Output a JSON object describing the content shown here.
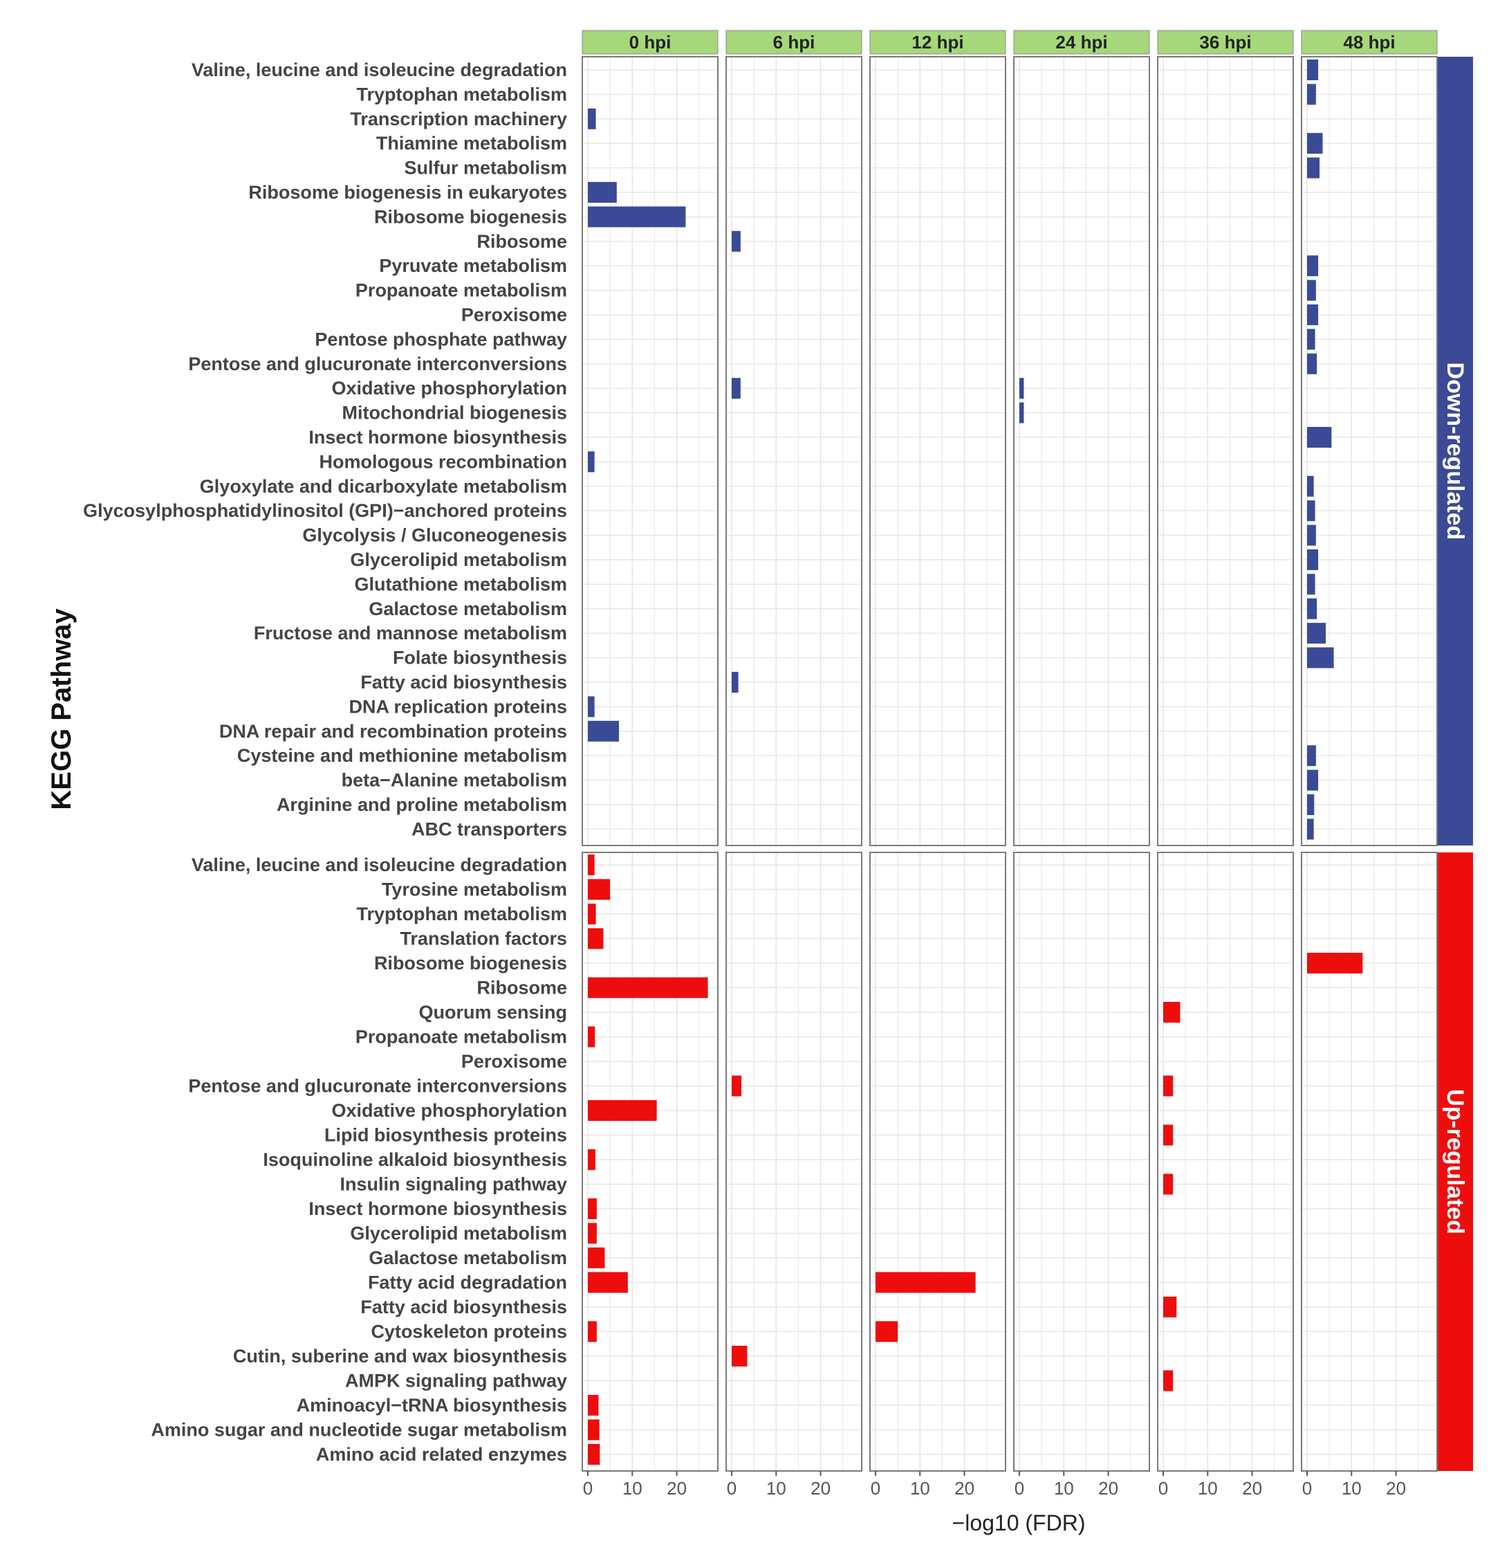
{
  "chart_data": {
    "type": "bar",
    "orientation": "horizontal",
    "ylabel": "KEGG Pathway",
    "xlabel": "−log10 (FDR)",
    "xlim": [
      0,
      28
    ],
    "x_ticks": [
      "0",
      "10",
      "20"
    ],
    "timepoints": [
      "0 hpi",
      "6 hpi",
      "12 hpi",
      "24 hpi",
      "36 hpi",
      "48 hpi"
    ],
    "colors": {
      "down": "#3a4a96",
      "up": "#ee0d0d",
      "strip": "#a6d77a",
      "grid": "#e6e6e6",
      "panel_border": "#7a7a7a"
    },
    "groups": [
      {
        "name": "Down-regulated",
        "color": "#3a4a96",
        "pathways": [
          "Valine, leucine and isoleucine degradation",
          "Tryptophan metabolism",
          "Transcription machinery",
          "Thiamine metabolism",
          "Sulfur metabolism",
          "Ribosome biogenesis in eukaryotes",
          "Ribosome biogenesis",
          "Ribosome",
          "Pyruvate metabolism",
          "Propanoate metabolism",
          "Peroxisome",
          "Pentose phosphate pathway",
          "Pentose and glucuronate interconversions",
          "Oxidative phosphorylation",
          "Mitochondrial biogenesis",
          "Insect hormone biosynthesis",
          "Homologous recombination",
          "Glyoxylate and dicarboxylate metabolism",
          "Glycosylphosphatidylinositol (GPI)−anchored proteins",
          "Glycolysis / Gluconeogenesis",
          "Glycerolipid metabolism",
          "Glutathione metabolism",
          "Galactose metabolism",
          "Fructose and mannose metabolism",
          "Folate biosynthesis",
          "Fatty acid biosynthesis",
          "DNA replication proteins",
          "DNA repair and recombination proteins",
          "Cysteine and methionine metabolism",
          "beta−Alanine metabolism",
          "Arginine and proline metabolism",
          "ABC transporters"
        ],
        "series": [
          {
            "name": "0 hpi",
            "values": [
              0,
              0,
              1.8,
              0,
              0,
              6.5,
              22,
              0,
              0,
              0,
              0,
              0,
              0,
              0,
              0,
              0,
              1.5,
              0,
              0,
              0,
              0,
              0,
              0,
              0,
              0,
              0,
              1.5,
              7,
              0,
              0,
              0,
              0
            ]
          },
          {
            "name": "6 hpi",
            "values": [
              0,
              0,
              0,
              0,
              0,
              0,
              0,
              2,
              0,
              0,
              0,
              0,
              0,
              2,
              0,
              0,
              0,
              0,
              0,
              0,
              0,
              0,
              0,
              0,
              0,
              1.5,
              0,
              0,
              0,
              0,
              0,
              0
            ]
          },
          {
            "name": "12 hpi",
            "values": [
              0,
              0,
              0,
              0,
              0,
              0,
              0,
              0,
              0,
              0,
              0,
              0,
              0,
              0,
              0,
              0,
              0,
              0,
              0,
              0,
              0,
              0,
              0,
              0,
              0,
              0,
              0,
              0,
              0,
              0,
              0,
              0
            ]
          },
          {
            "name": "24 hpi",
            "values": [
              0,
              0,
              0,
              0,
              0,
              0,
              0,
              0,
              0,
              0,
              0,
              0,
              0,
              1,
              1,
              0,
              0,
              0,
              0,
              0,
              0,
              0,
              0,
              0,
              0,
              0,
              0,
              0,
              0,
              0,
              0,
              0
            ]
          },
          {
            "name": "36 hpi",
            "values": [
              0,
              0,
              0,
              0,
              0,
              0,
              0,
              0,
              0,
              0,
              0,
              0,
              0,
              0,
              0,
              0,
              0,
              0,
              0,
              0,
              0,
              0,
              0,
              0,
              0,
              0,
              0,
              0,
              0,
              0,
              0,
              0
            ]
          },
          {
            "name": "48 hpi",
            "values": [
              2.5,
              2,
              0,
              3.5,
              2.8,
              0,
              0,
              0,
              2.5,
              2,
              2.5,
              1.8,
              2.2,
              0,
              0,
              5.5,
              0,
              1.5,
              1.8,
              2,
              2.5,
              1.8,
              2.2,
              4.2,
              6,
              0,
              0,
              0,
              2,
              2.5,
              1.6,
              1.5
            ]
          }
        ]
      },
      {
        "name": "Up-regulated",
        "color": "#ee0d0d",
        "pathways": [
          "Valine, leucine and isoleucine degradation",
          "Tyrosine metabolism",
          "Tryptophan metabolism",
          "Translation factors",
          "Ribosome biogenesis",
          "Ribosome",
          "Quorum sensing",
          "Propanoate metabolism",
          "Peroxisome",
          "Pentose and glucuronate interconversions",
          "Oxidative phosphorylation",
          "Lipid biosynthesis proteins",
          "Isoquinoline alkaloid biosynthesis",
          "Insulin signaling pathway",
          "Insect hormone biosynthesis",
          "Glycerolipid metabolism",
          "Galactose metabolism",
          "Fatty acid degradation",
          "Fatty acid biosynthesis",
          "Cytoskeleton proteins",
          "Cutin, suberine and wax biosynthesis",
          "AMPK signaling pathway",
          "Aminoacyl−tRNA biosynthesis",
          "Amino sugar and nucleotide sugar metabolism",
          "Amino acid related enzymes"
        ],
        "series": [
          {
            "name": "0 hpi",
            "values": [
              1.5,
              5,
              1.8,
              3.5,
              0,
              27,
              0,
              1.6,
              0,
              0,
              15.5,
              0,
              1.7,
              0,
              2,
              2,
              3.8,
              9,
              0,
              2,
              0,
              0,
              2.4,
              2.6,
              2.7
            ]
          },
          {
            "name": "6 hpi",
            "values": [
              0,
              0,
              0,
              0,
              0,
              0,
              0,
              0,
              0,
              2.2,
              0,
              0,
              0,
              0,
              0,
              0,
              0,
              0,
              0,
              0,
              3.5,
              0,
              0,
              0,
              0
            ]
          },
          {
            "name": "12 hpi",
            "values": [
              0,
              0,
              0,
              0,
              0,
              0,
              0,
              0,
              0,
              0,
              0,
              0,
              0,
              0,
              0,
              0,
              0,
              22.5,
              0,
              5,
              0,
              0,
              0,
              0,
              0
            ]
          },
          {
            "name": "24 hpi",
            "values": [
              0,
              0,
              0,
              0,
              0,
              0,
              0,
              0,
              0,
              0,
              0,
              0,
              0,
              0,
              0,
              0,
              0,
              0,
              0,
              0,
              0,
              0,
              0,
              0,
              0
            ]
          },
          {
            "name": "36 hpi",
            "values": [
              0,
              0,
              0,
              0,
              0,
              0,
              3.8,
              0,
              0,
              2.2,
              0,
              2.2,
              0,
              2.2,
              0,
              0,
              0,
              0,
              3,
              0,
              0,
              2.2,
              0,
              0,
              0
            ]
          },
          {
            "name": "48 hpi",
            "values": [
              0,
              0,
              0,
              0,
              12.5,
              0,
              0,
              0,
              0,
              0,
              0,
              0,
              0,
              0,
              0,
              0,
              0,
              0,
              0,
              0,
              0,
              0,
              0,
              0,
              0
            ]
          }
        ]
      }
    ]
  }
}
